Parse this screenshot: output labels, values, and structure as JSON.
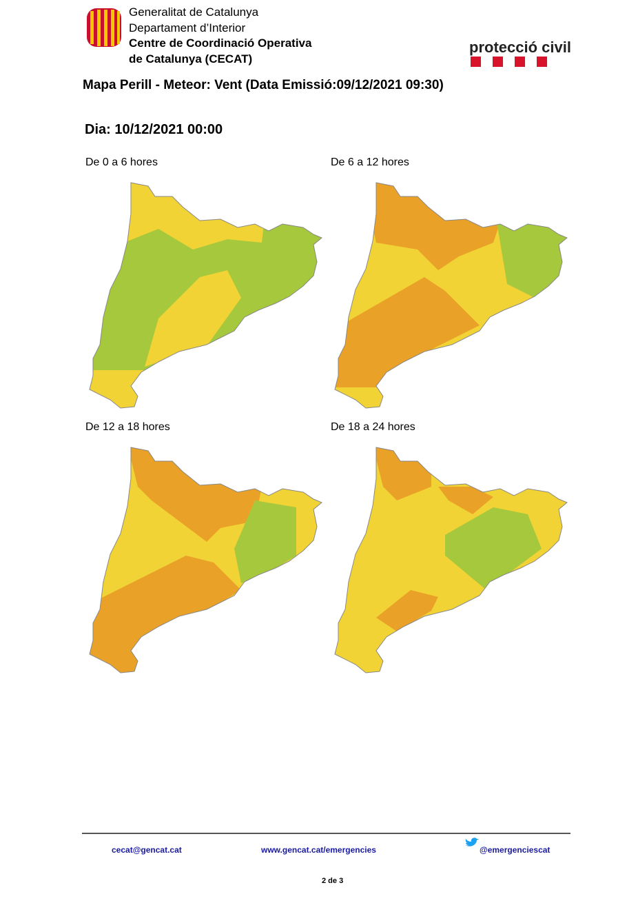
{
  "header": {
    "org_line1": "Generalitat de Catalunya",
    "org_line2": "Departament d’Interior",
    "org_line3": "Centre de Coordinació Operativa",
    "org_line4": "de Catalunya (CECAT)",
    "brand": "protecció civil"
  },
  "title": "Mapa Perill - Meteor: Vent (Data Emissió:09/12/2021 09:30)",
  "day": "Dia: 10/12/2021 00:00",
  "panels": [
    {
      "label": "De 0 a 6 hores"
    },
    {
      "label": "De 6 a 12 hores"
    },
    {
      "label": "De 12 a 18 hores"
    },
    {
      "label": "De 18 a 24 hores"
    }
  ],
  "footer": {
    "email": "cecat@gencat.cat",
    "web": "www.gencat.cat/emergencies",
    "twitter": "@emergenciescat",
    "page": "2 de 3"
  }
}
